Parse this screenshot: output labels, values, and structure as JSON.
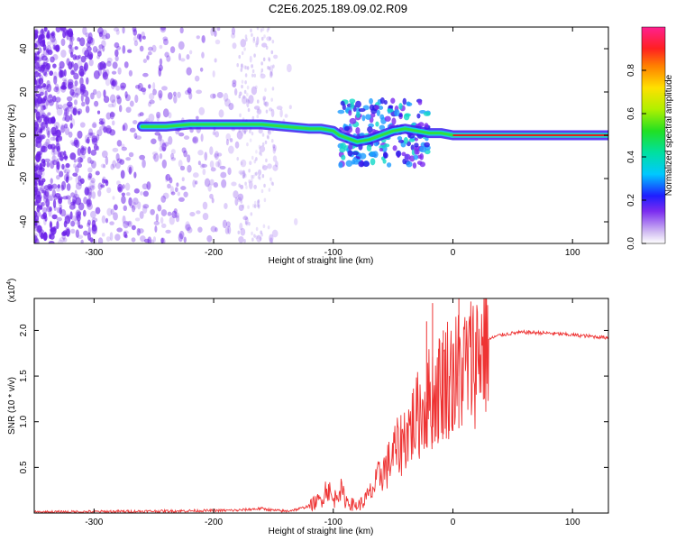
{
  "title": "C2E6.2025.189.09.02.R09",
  "colors": {
    "snr_line": "#ee3333",
    "cloud": "#6a1fe8",
    "axis": "#000000"
  },
  "chart_data": [
    {
      "type": "heatmap",
      "xlabel": "Height of straight line (km)",
      "ylabel": "Frequency (Hz)",
      "xlim": [
        -350,
        130
      ],
      "ylim": [
        -50,
        50
      ],
      "xticks": [
        -300,
        -200,
        -100,
        0,
        100
      ],
      "xtick_labels": [
        "-300",
        "-200",
        "-100",
        "0",
        "100"
      ],
      "yticks": [
        -40,
        -20,
        0,
        20,
        40
      ],
      "ytick_labels": [
        "-40",
        "-20",
        "0",
        "20",
        "40"
      ],
      "colorbar": {
        "label": "Normalized spectral amplitude",
        "range": [
          0,
          1
        ],
        "ticks": [
          0.0,
          0.2,
          0.4,
          0.6,
          0.8
        ],
        "tick_labels": [
          "0.0",
          "0.2",
          "0.4",
          "0.6",
          "0.8"
        ]
      },
      "ridge": {
        "x": [
          -260,
          -240,
          -220,
          -200,
          -180,
          -160,
          -140,
          -120,
          -110,
          -100,
          -95,
          -90,
          -85,
          -80,
          -70,
          -60,
          -50,
          -40,
          -30,
          -20,
          -10,
          0,
          10,
          50,
          100,
          130
        ],
        "y": [
          4,
          4,
          5,
          5,
          5,
          5,
          4,
          3,
          3,
          2,
          0,
          -1,
          -2,
          -3,
          -2,
          0,
          2,
          3,
          2,
          1,
          1,
          0,
          0,
          0,
          0,
          0
        ]
      }
    },
    {
      "type": "line",
      "xlabel": "Height of straight line (km)",
      "ylabel": "SNR (10 * v/v)",
      "scale_label": "(x10",
      "scale_exponent": "4",
      "xlim": [
        -350,
        130
      ],
      "ylim": [
        0,
        2.35
      ],
      "xticks": [
        -300,
        -200,
        -100,
        0,
        100
      ],
      "xtick_labels": [
        "-300",
        "-200",
        "-100",
        "0",
        "100"
      ],
      "yticks": [
        0.5,
        1.0,
        1.5,
        2.0
      ],
      "ytick_labels": [
        "0.5",
        "1.0",
        "1.5",
        "2.0"
      ],
      "series": [
        {
          "x": [
            -350,
            -250,
            -180,
            -160,
            -150,
            -140,
            -130,
            -120,
            -110,
            -105,
            -100,
            -95,
            -90,
            -85,
            -80,
            -75,
            -70,
            -65,
            -60,
            -55,
            -50,
            -45,
            -40,
            -35,
            -30,
            -25,
            -20,
            -15,
            -10,
            -5,
            0,
            5,
            10,
            15,
            20,
            25,
            30,
            35,
            40,
            50,
            60,
            80,
            100,
            120,
            130
          ],
          "y": [
            0.01,
            0.02,
            0.03,
            0.05,
            0.03,
            0.02,
            0.04,
            0.08,
            0.15,
            0.3,
            0.12,
            0.28,
            0.15,
            0.1,
            0.08,
            0.12,
            0.2,
            0.3,
            0.45,
            0.5,
            0.65,
            0.72,
            0.85,
            0.95,
            1.05,
            1.15,
            1.25,
            1.3,
            1.4,
            1.5,
            1.5,
            1.55,
            1.6,
            1.65,
            1.75,
            1.85,
            1.9,
            1.93,
            1.95,
            1.97,
            1.98,
            1.97,
            1.95,
            1.93,
            1.92
          ]
        }
      ],
      "spikes": [
        {
          "x": -22,
          "y": 2.1
        },
        {
          "x": -17,
          "y": 2.3
        },
        {
          "x": -12,
          "y": 1.8
        },
        {
          "x": -8,
          "y": 2.0
        },
        {
          "x": -3,
          "y": 1.5
        },
        {
          "x": 0,
          "y": 1.85
        },
        {
          "x": 5,
          "y": 2.35
        }
      ]
    }
  ]
}
